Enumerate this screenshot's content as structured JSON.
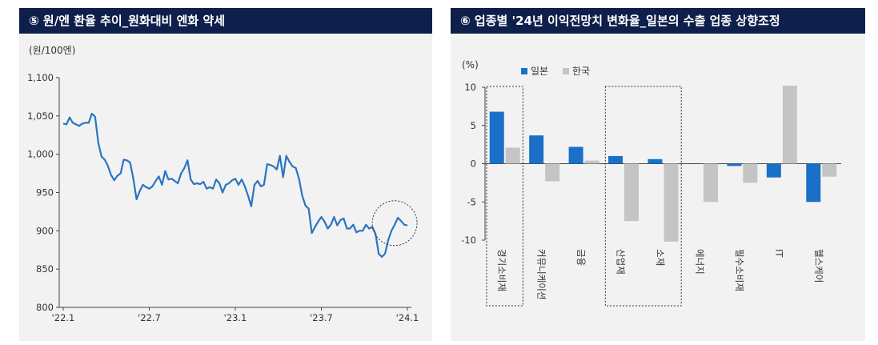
{
  "left": {
    "title": "⑤ 원/엔 환율 추이_원화대비 엔화 약세",
    "unit": "(원/100엔)",
    "chart_data": {
      "type": "line",
      "title": "원/엔 환율 추이_원화대비 엔화 약세",
      "ylabel": "(원/100엔)",
      "ylim": [
        800,
        1100
      ],
      "yticks": [
        "1,100",
        "1,050",
        "1,000",
        "950",
        "900",
        "850",
        "800"
      ],
      "ytick_values": [
        1100,
        1050,
        1000,
        950,
        900,
        850,
        800
      ],
      "xticks": [
        "'22.1",
        "'22.7",
        "'23.1",
        "'23.7",
        "'24.1"
      ],
      "xtick_positions": [
        0,
        0.25,
        0.5,
        0.75,
        1.0
      ],
      "grid": false,
      "color": "#2a74c0",
      "annotation": "circle around latest values",
      "series": [
        {
          "values": [
            1040,
            1039,
            1048,
            1041,
            1039,
            1037,
            1040,
            1041,
            1041,
            1053,
            1049,
            1015,
            997,
            993,
            985,
            973,
            966,
            972,
            975,
            993,
            992,
            989,
            968,
            941,
            952,
            960,
            957,
            955,
            958,
            965,
            971,
            960,
            978,
            967,
            968,
            965,
            962,
            975,
            982,
            992,
            967,
            961,
            962,
            961,
            964,
            955,
            957,
            955,
            967,
            962,
            950,
            960,
            962,
            966,
            968,
            960,
            967,
            958,
            946,
            932,
            960,
            965,
            958,
            960,
            987,
            986,
            984,
            980,
            998,
            970,
            998,
            990,
            984,
            982,
            968,
            946,
            933,
            929,
            897,
            905,
            912,
            918,
            912,
            903,
            908,
            918,
            907,
            914,
            916,
            903,
            903,
            908,
            898,
            900,
            900,
            908,
            903,
            905,
            896,
            870,
            866,
            870,
            888,
            900,
            908,
            917,
            913,
            908,
            907
          ]
        }
      ]
    }
  },
  "right": {
    "title": "⑥ 업종별 '24년 이익전망치 변화율_일본의 수출 업종 상향조정",
    "unit": "(%)",
    "chart_data": {
      "type": "bar",
      "title": "업종별 '24년 이익전망치 변화율_일본의 수출 업종 상향조정",
      "ylabel": "(%)",
      "ylim": [
        -10,
        10
      ],
      "yticks": [
        "10",
        "5",
        "0",
        "-5",
        "-10"
      ],
      "ytick_values": [
        10,
        5,
        0,
        -5,
        -10
      ],
      "categories": [
        "경기소비재",
        "커뮤니케이션",
        "금융",
        "산업재",
        "소재",
        "에너지",
        "필수소비재",
        "IT",
        "헬스케어"
      ],
      "series": [
        {
          "name": "일본",
          "color": "#1a6fc7",
          "values": [
            6.8,
            3.7,
            2.2,
            1.0,
            0.6,
            0.0,
            -0.3,
            -1.8,
            -5.0
          ]
        },
        {
          "name": "한국",
          "color": "#c4c4c4",
          "values": [
            2.1,
            -2.3,
            0.4,
            -7.5,
            -10.2,
            -5.0,
            -2.5,
            10.2,
            -1.7
          ]
        }
      ],
      "legend": "top-left",
      "highlight_groups": [
        [
          0
        ],
        [
          3,
          4
        ]
      ]
    }
  }
}
